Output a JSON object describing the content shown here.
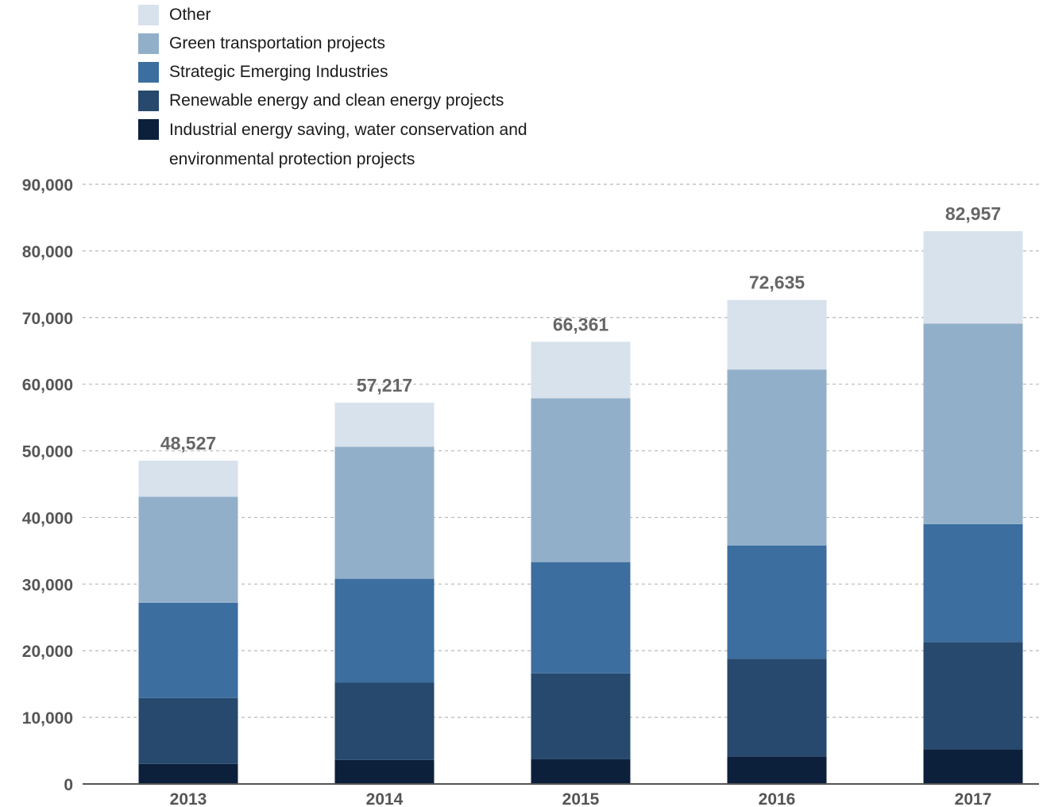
{
  "chart_data": {
    "type": "bar",
    "stacked": true,
    "categories": [
      "2013",
      "2014",
      "2015",
      "2016",
      "2017"
    ],
    "series": [
      {
        "name": "Industrial energy saving, water conservation and environmental protection projects",
        "color": "#0c1f3b",
        "values": [
          3000,
          3600,
          3700,
          4100,
          5200
        ]
      },
      {
        "name": "Renewable energy and clean energy projects",
        "color": "#26496d",
        "values": [
          9900,
          11600,
          12900,
          14700,
          16100
        ]
      },
      {
        "name": "Strategic Emerging Industries",
        "color": "#3c6e9f",
        "values": [
          14300,
          15600,
          16700,
          17000,
          17700
        ]
      },
      {
        "name": "Green transportation projects",
        "color": "#92afca",
        "values": [
          15900,
          19800,
          24600,
          26400,
          30100
        ]
      },
      {
        "name": "Other",
        "color": "#d8e2ec",
        "values": [
          5427,
          6617,
          8461,
          10435,
          13857
        ]
      }
    ],
    "totals": [
      "48,527",
      "57,217",
      "66,361",
      "72,635",
      "82,957"
    ],
    "totals_values": [
      48527,
      57217,
      66361,
      72635,
      82957
    ],
    "yticks": [
      "0",
      "10,000",
      "20,000",
      "30,000",
      "40,000",
      "50,000",
      "60,000",
      "70,000",
      "80,000",
      "90,000"
    ],
    "ylim": [
      0,
      90000
    ],
    "title": "",
    "xlabel": "",
    "ylabel": "",
    "grid": true,
    "legend_position": "top-left"
  },
  "legend": [
    {
      "label": "Other",
      "color": "#d8e2ec"
    },
    {
      "label": "Green transportation projects",
      "color": "#92afca"
    },
    {
      "label": "Strategic Emerging Industries",
      "color": "#3c6e9f"
    },
    {
      "label": "Renewable energy and clean energy projects",
      "color": "#26496d"
    },
    {
      "label": "Industrial energy saving, water conservation and environmental protection projects",
      "color": "#0c1f3b"
    }
  ]
}
